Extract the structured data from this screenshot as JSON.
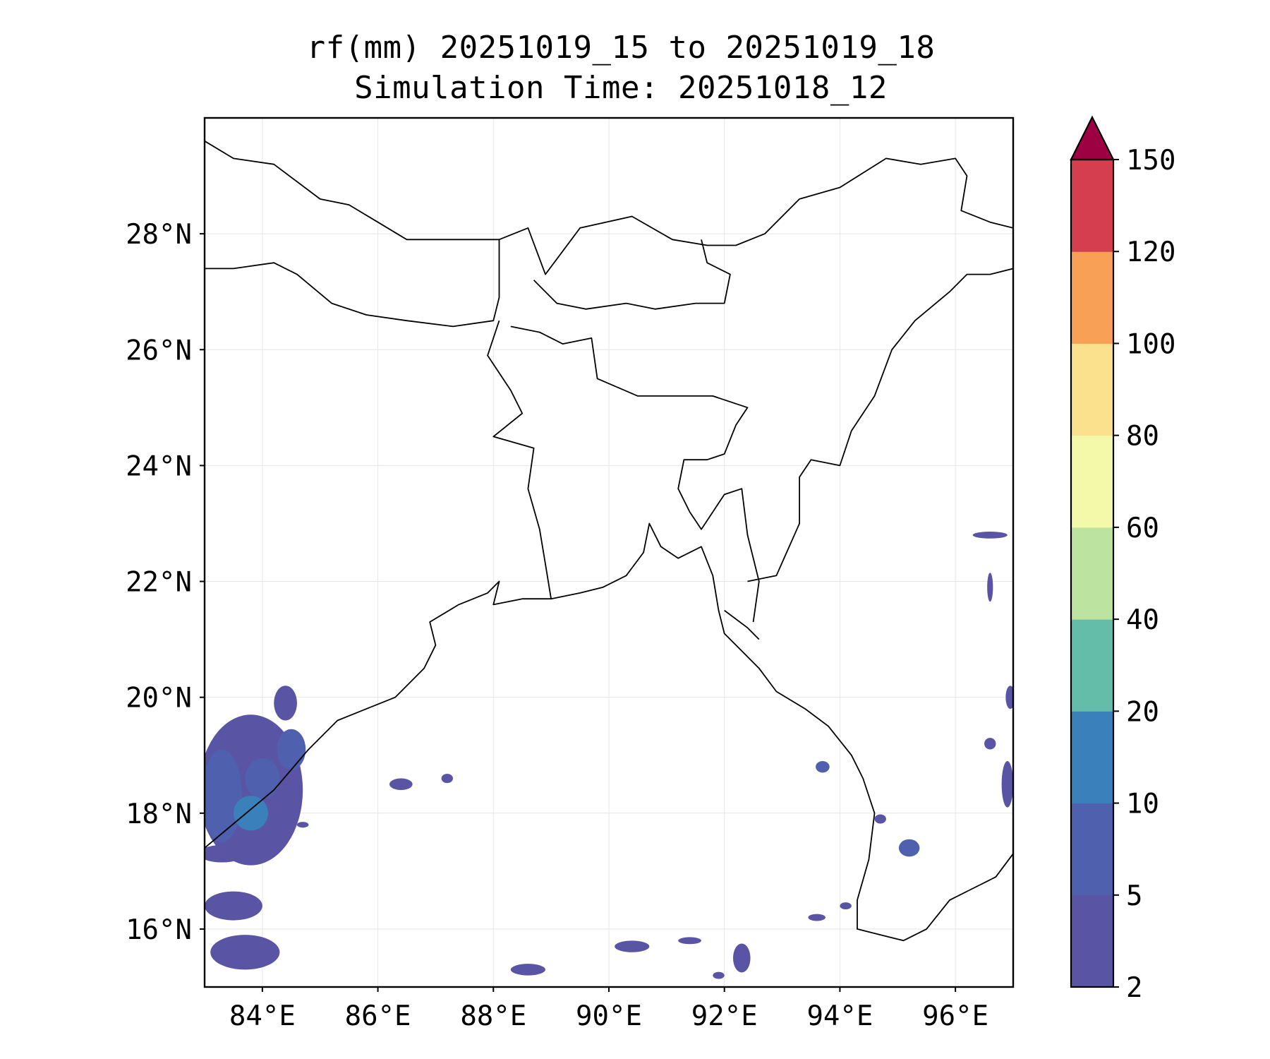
{
  "figure": {
    "title_line1": "rf(mm) 20251019_15 to 20251019_18",
    "title_line2": "Simulation Time: 20251018_12"
  },
  "map": {
    "extent": {
      "lon_min": 83.0,
      "lon_max": 97.0,
      "lat_min": 15.0,
      "lat_max": 30.0
    },
    "lat_ticks": [
      {
        "value": 16,
        "label": "16°N"
      },
      {
        "value": 18,
        "label": "18°N"
      },
      {
        "value": 20,
        "label": "20°N"
      },
      {
        "value": 22,
        "label": "22°N"
      },
      {
        "value": 24,
        "label": "24°N"
      },
      {
        "value": 26,
        "label": "26°N"
      },
      {
        "value": 28,
        "label": "28°N"
      }
    ],
    "lon_ticks": [
      {
        "value": 84,
        "label": "84°E"
      },
      {
        "value": 86,
        "label": "86°E"
      },
      {
        "value": 88,
        "label": "88°E"
      },
      {
        "value": 90,
        "label": "90°E"
      },
      {
        "value": 92,
        "label": "92°E"
      },
      {
        "value": 94,
        "label": "94°E"
      },
      {
        "value": 96,
        "label": "96°E"
      }
    ],
    "colors": {
      "gridline": "#e6e6e6",
      "coastline": "#000000",
      "frame": "#000000"
    },
    "coastlines": [
      [
        [
          83.0,
          17.4
        ],
        [
          83.6,
          17.9
        ],
        [
          84.2,
          18.4
        ],
        [
          84.8,
          19.1
        ],
        [
          85.3,
          19.6
        ],
        [
          85.8,
          19.8
        ],
        [
          86.3,
          20.0
        ],
        [
          86.8,
          20.5
        ],
        [
          87.0,
          20.9
        ],
        [
          86.9,
          21.3
        ],
        [
          87.4,
          21.6
        ],
        [
          87.9,
          21.8
        ],
        [
          88.1,
          22.0
        ],
        [
          88.0,
          21.6
        ],
        [
          88.5,
          21.7
        ],
        [
          89.0,
          21.7
        ],
        [
          89.5,
          21.8
        ],
        [
          89.9,
          21.9
        ],
        [
          90.3,
          22.1
        ],
        [
          90.6,
          22.5
        ],
        [
          90.7,
          23.0
        ],
        [
          90.9,
          22.6
        ],
        [
          91.2,
          22.4
        ],
        [
          91.6,
          22.6
        ],
        [
          91.8,
          22.1
        ],
        [
          91.9,
          21.5
        ],
        [
          92.0,
          21.1
        ],
        [
          92.3,
          20.8
        ],
        [
          92.6,
          20.5
        ],
        [
          92.9,
          20.1
        ],
        [
          93.4,
          19.8
        ],
        [
          93.8,
          19.5
        ],
        [
          94.2,
          19.0
        ],
        [
          94.4,
          18.6
        ],
        [
          94.6,
          18.0
        ],
        [
          94.5,
          17.2
        ],
        [
          94.3,
          16.5
        ],
        [
          94.3,
          16.0
        ],
        [
          94.7,
          15.9
        ],
        [
          95.1,
          15.8
        ],
        [
          95.5,
          16.0
        ],
        [
          95.9,
          16.5
        ],
        [
          96.3,
          16.7
        ],
        [
          96.7,
          16.9
        ],
        [
          97.0,
          17.3
        ]
      ]
    ],
    "borders": [
      [
        [
          83.0,
          29.6
        ],
        [
          83.5,
          29.3
        ],
        [
          84.2,
          29.2
        ],
        [
          85.0,
          28.6
        ],
        [
          85.5,
          28.5
        ],
        [
          86.0,
          28.2
        ],
        [
          86.5,
          27.9
        ],
        [
          87.0,
          27.9
        ],
        [
          87.5,
          27.9
        ],
        [
          88.1,
          27.9
        ],
        [
          88.6,
          28.1
        ],
        [
          88.9,
          27.3
        ],
        [
          89.5,
          28.1
        ],
        [
          90.4,
          28.3
        ],
        [
          91.1,
          27.9
        ],
        [
          91.7,
          27.8
        ],
        [
          92.2,
          27.8
        ],
        [
          92.7,
          28.0
        ],
        [
          93.3,
          28.6
        ],
        [
          94.0,
          28.8
        ],
        [
          94.8,
          29.3
        ],
        [
          95.4,
          29.2
        ],
        [
          96.0,
          29.3
        ],
        [
          96.2,
          29.0
        ],
        [
          96.1,
          28.4
        ],
        [
          96.6,
          28.2
        ],
        [
          97.0,
          28.1
        ]
      ],
      [
        [
          83.0,
          27.4
        ],
        [
          83.5,
          27.4
        ],
        [
          84.2,
          27.5
        ],
        [
          84.6,
          27.3
        ],
        [
          85.2,
          26.8
        ],
        [
          85.8,
          26.6
        ],
        [
          86.5,
          26.5
        ],
        [
          87.3,
          26.4
        ],
        [
          88.0,
          26.5
        ],
        [
          88.1,
          26.9
        ],
        [
          88.1,
          27.9
        ]
      ],
      [
        [
          88.7,
          27.2
        ],
        [
          89.1,
          26.8
        ],
        [
          89.6,
          26.7
        ],
        [
          90.3,
          26.8
        ],
        [
          90.8,
          26.7
        ],
        [
          91.5,
          26.8
        ],
        [
          92.0,
          26.8
        ],
        [
          92.1,
          27.3
        ],
        [
          91.7,
          27.5
        ],
        [
          91.6,
          27.9
        ]
      ],
      [
        [
          88.1,
          26.5
        ],
        [
          87.9,
          25.9
        ],
        [
          88.3,
          25.3
        ],
        [
          88.5,
          24.9
        ],
        [
          88.0,
          24.5
        ],
        [
          88.7,
          24.3
        ],
        [
          88.6,
          23.6
        ],
        [
          88.8,
          22.9
        ],
        [
          88.9,
          22.3
        ],
        [
          89.0,
          21.7
        ]
      ],
      [
        [
          88.3,
          26.4
        ],
        [
          88.8,
          26.3
        ],
        [
          89.2,
          26.1
        ],
        [
          89.7,
          26.2
        ],
        [
          89.8,
          25.5
        ],
        [
          90.5,
          25.2
        ],
        [
          91.2,
          25.2
        ],
        [
          91.8,
          25.2
        ],
        [
          92.4,
          25.0
        ],
        [
          92.2,
          24.7
        ],
        [
          92.0,
          24.2
        ],
        [
          91.7,
          24.1
        ],
        [
          91.3,
          24.1
        ],
        [
          91.2,
          23.6
        ],
        [
          91.4,
          23.2
        ],
        [
          91.6,
          22.9
        ],
        [
          92.0,
          23.5
        ],
        [
          92.3,
          23.6
        ],
        [
          92.4,
          22.8
        ],
        [
          92.6,
          22.0
        ],
        [
          92.5,
          21.3
        ]
      ],
      [
        [
          92.0,
          21.5
        ],
        [
          92.4,
          21.2
        ],
        [
          92.6,
          21.0
        ]
      ],
      [
        [
          92.4,
          22.0
        ],
        [
          92.9,
          22.1
        ],
        [
          93.3,
          23.0
        ],
        [
          93.3,
          23.8
        ],
        [
          93.5,
          24.1
        ],
        [
          94.0,
          24.0
        ],
        [
          94.2,
          24.6
        ],
        [
          94.6,
          25.2
        ],
        [
          94.9,
          26.0
        ],
        [
          95.3,
          26.5
        ],
        [
          95.9,
          27.0
        ],
        [
          96.2,
          27.3
        ],
        [
          96.6,
          27.3
        ],
        [
          97.0,
          27.4
        ]
      ]
    ],
    "colorbar": {
      "levels": [
        "2",
        "5",
        "10",
        "20",
        "40",
        "60",
        "80",
        "100",
        "120",
        "150"
      ],
      "colors": [
        "#5954a4",
        "#4f60ae",
        "#3a80bb",
        "#63bda9",
        "#bce3a0",
        "#f4f9aa",
        "#fbe08e",
        "#f8a056",
        "#d53e4f"
      ],
      "extend_color": "#9e0142"
    }
  },
  "chart_data": {
    "type": "heatmap",
    "title": "rf(mm) 20251019_15 to 20251019_18\nSimulation Time: 20251018_12",
    "variable": "rainfall (mm)",
    "xlabel": "",
    "ylabel": "",
    "xlim": [
      83.0,
      97.0
    ],
    "ylim": [
      15.0,
      30.0
    ],
    "colorbar_levels": [
      2,
      5,
      10,
      20,
      40,
      60,
      80,
      100,
      120,
      150
    ],
    "colorbar_extend": "max",
    "rain_areas": [
      {
        "lon": 83.8,
        "lat": 18.4,
        "rlon": 0.9,
        "rlat": 1.3,
        "class": "2-5"
      },
      {
        "lon": 83.3,
        "lat": 18.3,
        "rlon": 0.35,
        "rlat": 0.8,
        "class": "5-10"
      },
      {
        "lon": 84.0,
        "lat": 18.6,
        "rlon": 0.3,
        "rlat": 0.35,
        "class": "5-10"
      },
      {
        "lon": 83.8,
        "lat": 18.0,
        "rlon": 0.3,
        "rlat": 0.3,
        "class": "10-20"
      },
      {
        "lon": 84.5,
        "lat": 19.1,
        "rlon": 0.25,
        "rlat": 0.35,
        "class": "5-10"
      },
      {
        "lon": 84.4,
        "lat": 19.9,
        "rlon": 0.2,
        "rlat": 0.3,
        "class": "2-5"
      },
      {
        "lon": 83.3,
        "lat": 17.3,
        "rlon": 0.4,
        "rlat": 0.15,
        "class": "2-5"
      },
      {
        "lon": 83.5,
        "lat": 16.4,
        "rlon": 0.5,
        "rlat": 0.25,
        "class": "2-5"
      },
      {
        "lon": 83.7,
        "lat": 15.6,
        "rlon": 0.6,
        "rlat": 0.3,
        "class": "2-5"
      },
      {
        "lon": 84.7,
        "lat": 17.8,
        "rlon": 0.1,
        "rlat": 0.05,
        "class": "2-5"
      },
      {
        "lon": 86.4,
        "lat": 18.5,
        "rlon": 0.2,
        "rlat": 0.1,
        "class": "2-5"
      },
      {
        "lon": 87.2,
        "lat": 18.6,
        "rlon": 0.1,
        "rlat": 0.08,
        "class": "2-5"
      },
      {
        "lon": 88.6,
        "lat": 15.3,
        "rlon": 0.3,
        "rlat": 0.1,
        "class": "2-5"
      },
      {
        "lon": 90.4,
        "lat": 15.7,
        "rlon": 0.3,
        "rlat": 0.1,
        "class": "2-5"
      },
      {
        "lon": 91.4,
        "lat": 15.8,
        "rlon": 0.2,
        "rlat": 0.06,
        "class": "2-5"
      },
      {
        "lon": 92.3,
        "lat": 15.5,
        "rlon": 0.15,
        "rlat": 0.25,
        "class": "2-5"
      },
      {
        "lon": 91.9,
        "lat": 15.2,
        "rlon": 0.1,
        "rlat": 0.06,
        "class": "2-5"
      },
      {
        "lon": 93.7,
        "lat": 18.8,
        "rlon": 0.12,
        "rlat": 0.1,
        "class": "5-10"
      },
      {
        "lon": 94.7,
        "lat": 17.9,
        "rlon": 0.1,
        "rlat": 0.08,
        "class": "2-5"
      },
      {
        "lon": 95.2,
        "lat": 17.4,
        "rlon": 0.18,
        "rlat": 0.15,
        "class": "5-10"
      },
      {
        "lon": 94.1,
        "lat": 16.4,
        "rlon": 0.1,
        "rlat": 0.06,
        "class": "2-5"
      },
      {
        "lon": 93.6,
        "lat": 16.2,
        "rlon": 0.15,
        "rlat": 0.06,
        "class": "2-5"
      },
      {
        "lon": 96.6,
        "lat": 22.8,
        "rlon": 0.3,
        "rlat": 0.06,
        "class": "2-5"
      },
      {
        "lon": 96.6,
        "lat": 21.9,
        "rlon": 0.05,
        "rlat": 0.25,
        "class": "2-5"
      },
      {
        "lon": 96.6,
        "lat": 19.2,
        "rlon": 0.1,
        "rlat": 0.1,
        "class": "2-5"
      },
      {
        "lon": 96.9,
        "lat": 18.5,
        "rlon": 0.1,
        "rlat": 0.4,
        "class": "2-5"
      },
      {
        "lon": 96.95,
        "lat": 20.0,
        "rlon": 0.08,
        "rlat": 0.2,
        "class": "2-5"
      }
    ]
  }
}
